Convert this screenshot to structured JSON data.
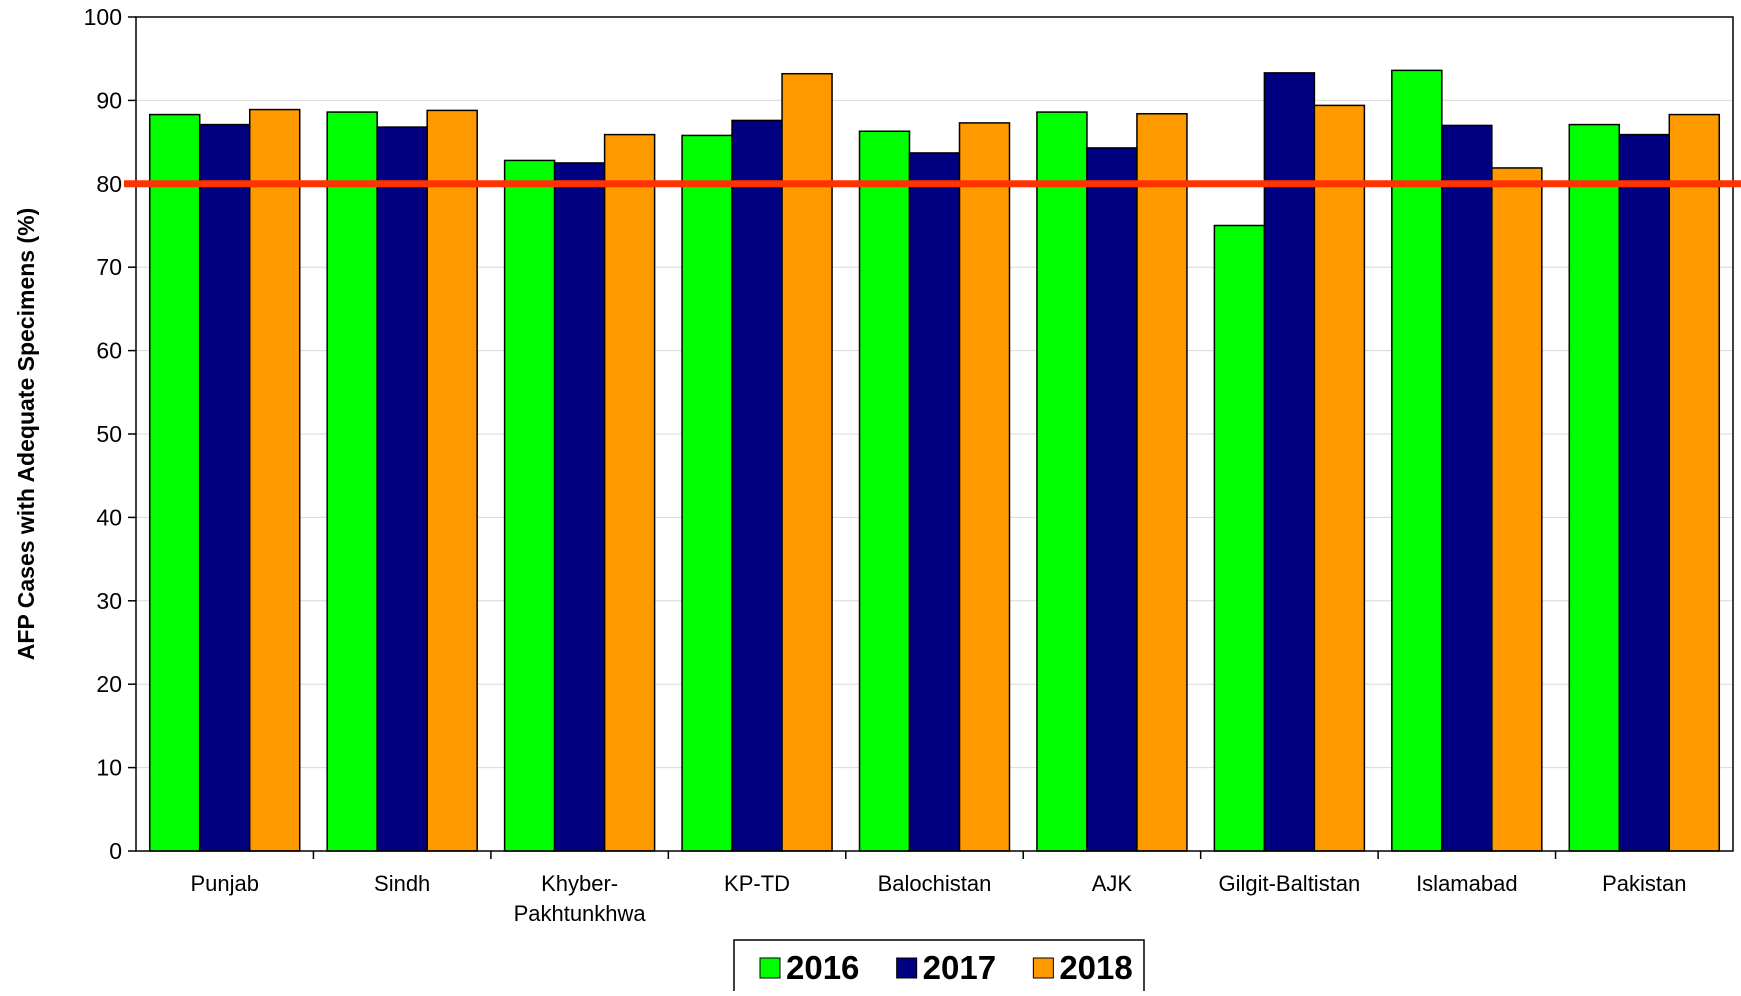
{
  "chart_data": {
    "type": "bar",
    "title": "",
    "xlabel": "",
    "ylabel": "AFP Cases with Adequate Specimens (%)",
    "ylim": [
      0,
      100
    ],
    "yticks": [
      0,
      10,
      20,
      30,
      40,
      50,
      60,
      70,
      80,
      90,
      100
    ],
    "grid": true,
    "legend_position": "bottom-center",
    "categories": [
      [
        "Punjab"
      ],
      [
        "Sindh"
      ],
      [
        "Khyber-",
        "Pakhtunkhwa"
      ],
      [
        "KP-TD"
      ],
      [
        "Balochistan"
      ],
      [
        "AJK"
      ],
      [
        "Gilgit-Baltistan"
      ],
      [
        "Islamabad"
      ],
      [
        "Pakistan"
      ]
    ],
    "series": [
      {
        "name": "2016",
        "color": "#00ff00",
        "values": [
          88.3,
          88.6,
          82.8,
          85.8,
          86.3,
          88.6,
          75.0,
          93.6,
          87.1
        ]
      },
      {
        "name": "2017",
        "color": "#000080",
        "values": [
          87.1,
          86.8,
          82.5,
          87.6,
          83.7,
          84.3,
          93.3,
          87.0,
          85.9
        ]
      },
      {
        "name": "2018",
        "color": "#ff9900",
        "values": [
          88.9,
          88.8,
          85.9,
          93.2,
          87.3,
          88.4,
          89.4,
          81.9,
          88.3
        ]
      }
    ],
    "target_line": {
      "value": 80,
      "color": "#ff3300"
    }
  }
}
